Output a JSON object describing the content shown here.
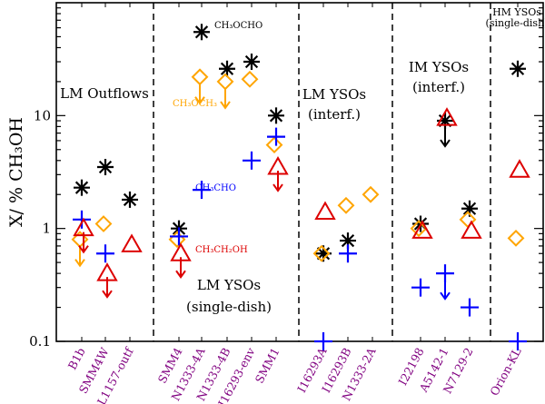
{
  "chart_data": {
    "type": "scatter",
    "ylabel": "X/ % CH₃OH",
    "yscale": "log",
    "ylim": [
      0.1,
      100
    ],
    "yticks": [
      {
        "value": 0.1,
        "label": "0.1"
      },
      {
        "value": 1,
        "label": "1"
      },
      {
        "value": 10,
        "label": "10"
      }
    ],
    "categories": [
      "B1b",
      "SMM4W",
      "L1157-outf",
      "SMM4",
      "N1333-4A",
      "N1333-4B",
      "I16293-env",
      "SMM1",
      "I16293A",
      "I16293B",
      "N1333-2A",
      "I22198",
      "A5142-1",
      "N7129-2",
      "Orion-KL"
    ],
    "category_color": "#800080",
    "groups": [
      {
        "label": "LM Outflows",
        "sub": ""
      },
      {
        "label": "LM YSOs",
        "sub": "(single-dish)"
      },
      {
        "label": "LM YSOs",
        "sub": "(interf.)"
      },
      {
        "label": "IM YSOs",
        "sub": "(interf.)"
      },
      {
        "label": "HM YSOs",
        "sub": "(single-dish)"
      }
    ],
    "group_separators_after": [
      "L1157-outf",
      "SMM1",
      "N1333-2A",
      "N7129-2"
    ],
    "series": [
      {
        "name": "CH₃OCHO",
        "marker": "asterisk",
        "color": "#000000",
        "points": [
          {
            "cat": "B1b",
            "y": 2.3
          },
          {
            "cat": "SMM4W",
            "y": 3.5
          },
          {
            "cat": "L1157-outf",
            "y": 1.8
          },
          {
            "cat": "SMM4",
            "y": 1.0
          },
          {
            "cat": "N1333-4A",
            "y": 55
          },
          {
            "cat": "N1333-4B",
            "y": 26
          },
          {
            "cat": "I16293-env",
            "y": 30
          },
          {
            "cat": "SMM1",
            "y": 10
          },
          {
            "cat": "I16293A",
            "y": 0.6
          },
          {
            "cat": "I16293B",
            "y": 0.78
          },
          {
            "cat": "I22198",
            "y": 1.1
          },
          {
            "cat": "A5142-1",
            "y": 9,
            "upper_limit": true
          },
          {
            "cat": "N7129-2",
            "y": 1.5
          },
          {
            "cat": "Orion-KL",
            "y": 26
          }
        ]
      },
      {
        "name": "CH₃OCH₃",
        "marker": "diamond",
        "color": "#FFA500",
        "points": [
          {
            "cat": "B1b",
            "y": 0.8,
            "upper_limit": true
          },
          {
            "cat": "SMM4W",
            "y": 1.1
          },
          {
            "cat": "SMM4",
            "y": 0.8
          },
          {
            "cat": "N1333-4A",
            "y": 22,
            "upper_limit": true
          },
          {
            "cat": "N1333-4B",
            "y": 20,
            "upper_limit": true
          },
          {
            "cat": "I16293-env",
            "y": 21
          },
          {
            "cat": "SMM1",
            "y": 5.5
          },
          {
            "cat": "I16293A",
            "y": 0.6
          },
          {
            "cat": "I16293B",
            "y": 1.6
          },
          {
            "cat": "N1333-2A",
            "y": 2.0
          },
          {
            "cat": "I22198",
            "y": 1.0
          },
          {
            "cat": "N7129-2",
            "y": 1.2
          },
          {
            "cat": "Orion-KL",
            "y": 0.82
          }
        ]
      },
      {
        "name": "CH₃CHO",
        "marker": "plus",
        "color": "#0000FF",
        "points": [
          {
            "cat": "B1b",
            "y": 1.2
          },
          {
            "cat": "SMM4W",
            "y": 0.6
          },
          {
            "cat": "SMM4",
            "y": 0.85
          },
          {
            "cat": "N1333-4A",
            "y": 2.2
          },
          {
            "cat": "I16293-env",
            "y": 4.0
          },
          {
            "cat": "SMM1",
            "y": 6.5
          },
          {
            "cat": "I16293A",
            "y": 0.1
          },
          {
            "cat": "I16293B",
            "y": 0.6
          },
          {
            "cat": "I22198",
            "y": 0.3
          },
          {
            "cat": "A5142-1",
            "y": 0.4,
            "upper_limit": true
          },
          {
            "cat": "N7129-2",
            "y": 0.2
          },
          {
            "cat": "Orion-KL",
            "y": 0.1
          }
        ]
      },
      {
        "name": "CH₃CH₂OH",
        "marker": "triangle",
        "color": "#DD0000",
        "points": [
          {
            "cat": "B1b",
            "y": 1.0,
            "upper_limit": true
          },
          {
            "cat": "SMM4W",
            "y": 0.4,
            "upper_limit": true
          },
          {
            "cat": "L1157-outf",
            "y": 0.72
          },
          {
            "cat": "SMM4",
            "y": 0.6,
            "upper_limit": true
          },
          {
            "cat": "SMM1",
            "y": 3.5,
            "upper_limit": true
          },
          {
            "cat": "I16293A",
            "y": 1.4
          },
          {
            "cat": "I22198",
            "y": 0.95
          },
          {
            "cat": "A5142-1",
            "y": 9.5
          },
          {
            "cat": "N7129-2",
            "y": 0.95
          },
          {
            "cat": "Orion-KL",
            "y": 3.3
          }
        ]
      }
    ],
    "annotations": [
      {
        "text": "CH₃OCHO",
        "color": "#000000",
        "near": "N1333-4A"
      },
      {
        "text": "CH₃OCH₃",
        "color": "#FFA500",
        "near": "SMM4"
      },
      {
        "text": "CH₃CHO",
        "color": "#0000FF",
        "near": "N1333-4A"
      },
      {
        "text": "CH₃CH₂OH",
        "color": "#DD0000",
        "near": "N1333-4A"
      }
    ]
  }
}
